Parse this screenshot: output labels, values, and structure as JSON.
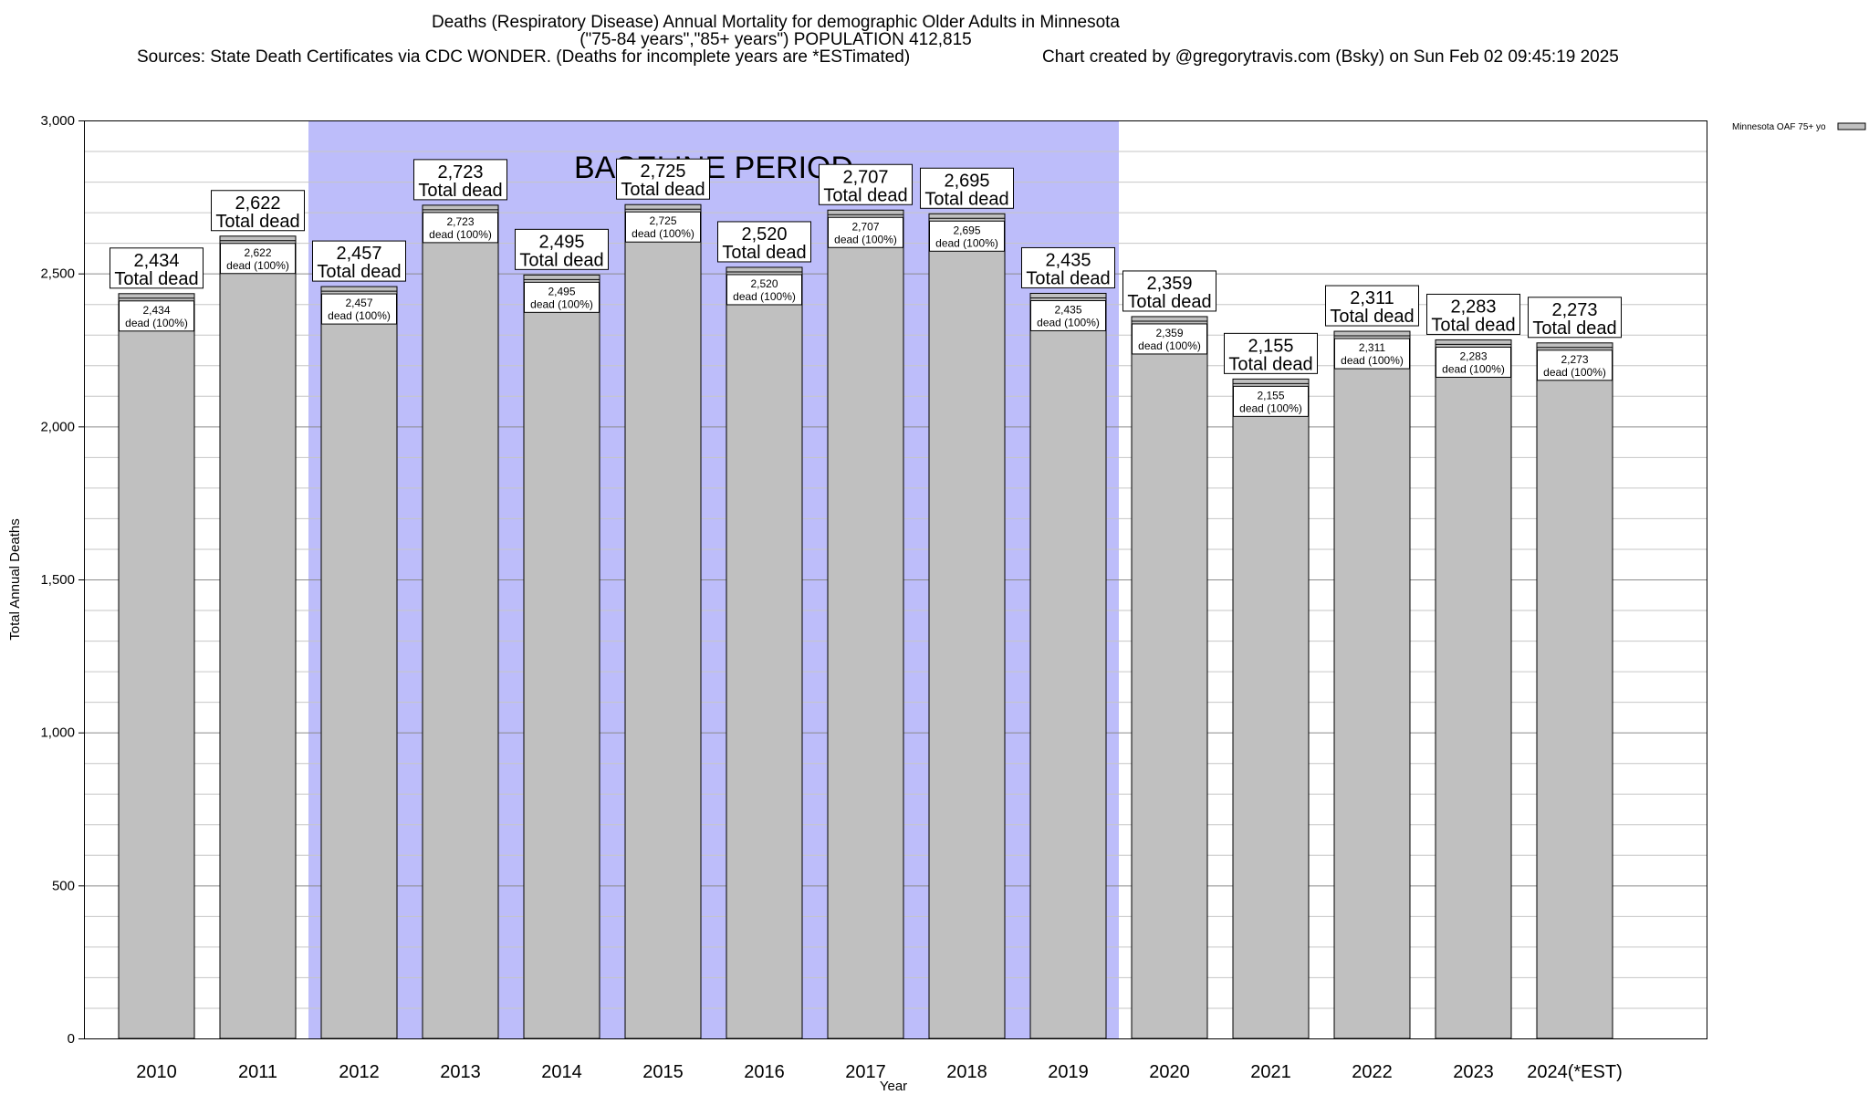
{
  "header": {
    "title": "Deaths (Respiratory Disease) Annual Mortality for demographic Older Adults in Minnesota",
    "subtitle": "(\"75-84 years\",\"85+ years\") POPULATION 412,815",
    "sources": "Sources: State Death Certificates via CDC WONDER. (Deaths for incomplete years are *ESTimated)",
    "credit": "Chart created by @gregorytravis.com (Bsky) on Sun Feb 02 09:45:19 2025"
  },
  "chart_data": {
    "type": "bar",
    "title": "Deaths (Respiratory Disease) Annual Mortality for demographic Older Adults in Minnesota",
    "xlabel": "Year",
    "ylabel": "Total Annual Deaths",
    "ylim": [
      0,
      3000
    ],
    "yticks": [
      0,
      500,
      1000,
      1500,
      2000,
      2500,
      3000
    ],
    "ytick_labels": [
      "0",
      "500",
      "1,000",
      "1,500",
      "2,000",
      "2,500",
      "3,000"
    ],
    "grid": true,
    "categories": [
      "2010",
      "2011",
      "2012",
      "2013",
      "2014",
      "2015",
      "2016",
      "2017",
      "2018",
      "2019",
      "2020",
      "2021",
      "2022",
      "2023",
      "2024(*EST)"
    ],
    "values": [
      2434,
      2622,
      2457,
      2723,
      2495,
      2725,
      2520,
      2707,
      2695,
      2435,
      2359,
      2155,
      2311,
      2283,
      2273
    ],
    "value_labels": [
      "2,434",
      "2,622",
      "2,457",
      "2,723",
      "2,495",
      "2,725",
      "2,520",
      "2,707",
      "2,695",
      "2,435",
      "2,359",
      "2,155",
      "2,311",
      "2,283",
      "2,273"
    ],
    "total_label": "Total dead",
    "inner_label": "dead (100%)",
    "series": [
      {
        "name": "Minnesota OAF 75+ yo",
        "color": "#c0c0c0"
      }
    ],
    "legend": {
      "label": "Minnesota OAF 75+ yo",
      "position": "top-right"
    },
    "baseline": {
      "label": "BASELINE PERIOD",
      "start_category": "2012",
      "end_category": "2019",
      "color": "#bdbdfa"
    }
  }
}
